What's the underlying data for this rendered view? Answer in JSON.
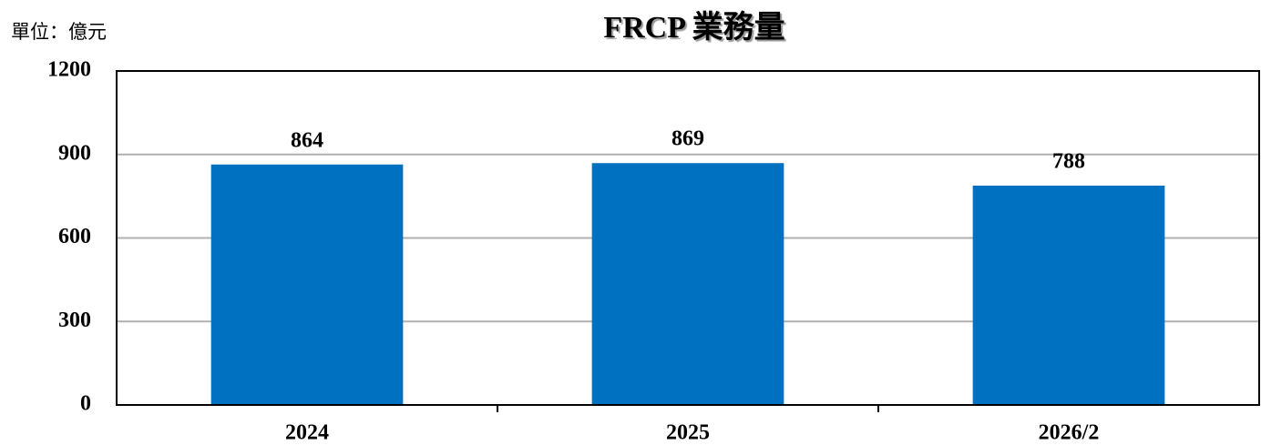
{
  "chart_data": {
    "type": "bar",
    "title": "FRCP 業務量",
    "unit_label": "單位：億元",
    "categories": [
      "2024",
      "2025",
      "2026/2"
    ],
    "values": [
      864,
      869,
      788
    ],
    "color": "#0070c0",
    "ylim": [
      0,
      1200
    ],
    "yticks": [
      0,
      300,
      600,
      900,
      1200
    ],
    "grid": true
  }
}
